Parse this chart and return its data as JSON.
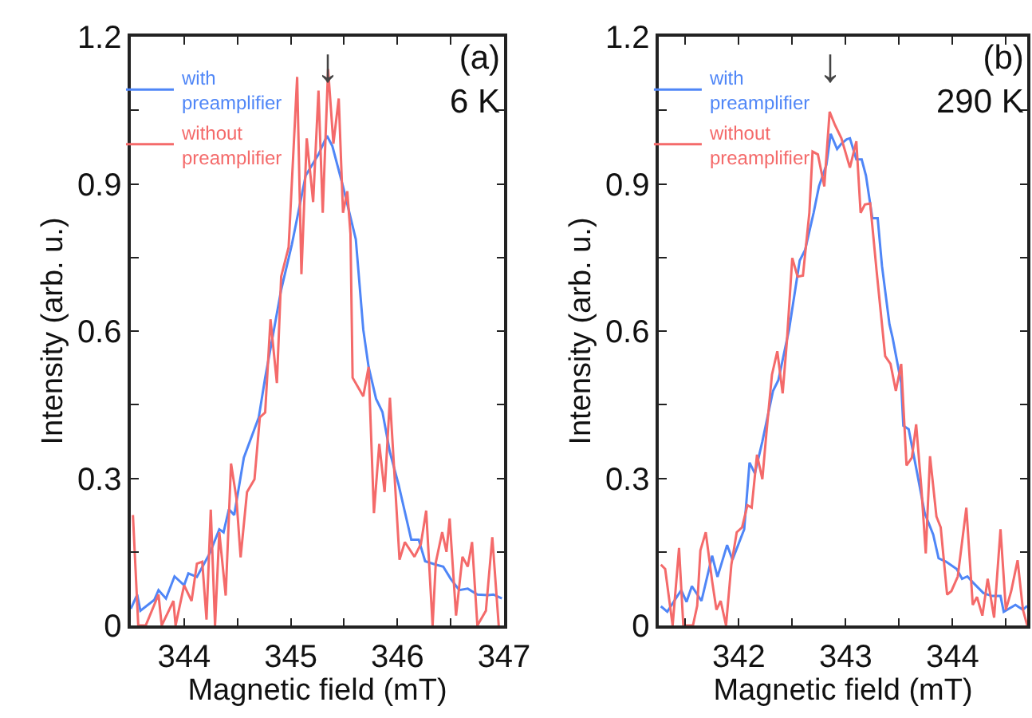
{
  "chart_data": [
    {
      "type": "line",
      "xlabel": "Magnetic field (mT)",
      "ylabel": "Intensity (arb. u.)",
      "annotations": [
        "(a)\n6 K",
        "↓"
      ],
      "legend": "top left",
      "marker": "none",
      "line_style": "solid",
      "xlim": [
        343.5,
        347
      ],
      "ylim": [
        0,
        1.2
      ],
      "xticks": [
        344,
        {
          "value": 344.5,
          "label": null
        },
        345,
        {
          "value": 345.5,
          "label": null
        },
        346,
        {
          "value": 346.5,
          "label": null
        },
        347
      ],
      "yticks": [
        0,
        {
          "value": 0.15,
          "label": null
        },
        0.3,
        {
          "value": 0.45,
          "label": null
        },
        0.6,
        {
          "value": 0.75,
          "label": null
        },
        0.9,
        {
          "value": 1.05,
          "label": null
        },
        1.2
      ],
      "series": [
        {
          "name": "with preamplifier",
          "color": "#4f86f7",
          "x": [
            343.5,
            343.56,
            343.59,
            343.72,
            343.76,
            343.83,
            343.91,
            344.0,
            344.04,
            344.12,
            344.24,
            344.33,
            344.37,
            344.42,
            344.47,
            344.56,
            344.7,
            344.76,
            344.84,
            344.91,
            345.01,
            345.14,
            345.26,
            345.34,
            345.39,
            345.49,
            345.61,
            345.68,
            345.73,
            345.8,
            345.86,
            345.93,
            346.01,
            346.13,
            346.2,
            346.26,
            346.36,
            346.43,
            346.5,
            346.58,
            346.66,
            346.75,
            346.85,
            346.9,
            346.98
          ],
          "values": [
            0.034,
            0.063,
            0.03,
            0.052,
            0.072,
            0.055,
            0.1,
            0.082,
            0.106,
            0.099,
            0.147,
            0.196,
            0.19,
            0.237,
            0.225,
            0.342,
            0.424,
            0.505,
            0.6,
            0.684,
            0.776,
            0.917,
            0.96,
            0.998,
            0.977,
            0.895,
            0.787,
            0.603,
            0.527,
            0.462,
            0.435,
            0.353,
            0.288,
            0.175,
            0.175,
            0.131,
            0.124,
            0.12,
            0.095,
            0.072,
            0.075,
            0.063,
            0.062,
            0.063,
            0.055
          ]
        },
        {
          "name": "without preamplifier",
          "color": "#f46a6a",
          "x": [
            343.52,
            343.57,
            343.64,
            343.76,
            343.79,
            343.9,
            343.92,
            344.0,
            344.07,
            344.12,
            344.17,
            344.21,
            344.25,
            344.29,
            344.33,
            344.39,
            344.44,
            344.49,
            344.53,
            344.59,
            344.66,
            344.71,
            344.76,
            344.81,
            344.87,
            344.91,
            344.98,
            345.06,
            345.1,
            345.15,
            345.21,
            345.26,
            345.3,
            345.35,
            345.4,
            345.45,
            345.49,
            345.53,
            345.56,
            345.58,
            345.68,
            345.73,
            345.78,
            345.83,
            345.88,
            345.93,
            346.02,
            346.07,
            346.16,
            346.22,
            346.27,
            346.33,
            346.36,
            346.42,
            346.46,
            346.49,
            346.55,
            346.61,
            346.66,
            346.7,
            346.75,
            346.83,
            346.89,
            346.95
          ],
          "values": [
            0.225,
            0.0,
            0.0,
            0.063,
            0.0,
            0.05,
            0.0,
            0.082,
            0.05,
            0.126,
            0.13,
            0.012,
            0.236,
            0.0,
            0.19,
            0.061,
            0.33,
            0.26,
            0.139,
            0.272,
            0.298,
            0.424,
            0.434,
            0.624,
            0.494,
            0.711,
            0.771,
            1.118,
            0.716,
            0.993,
            0.863,
            1.09,
            0.841,
            1.134,
            0.982,
            1.074,
            0.841,
            0.885,
            0.798,
            0.505,
            0.467,
            0.527,
            0.229,
            0.37,
            0.272,
            0.464,
            0.134,
            0.17,
            0.14,
            0.166,
            0.234,
            0.0,
            0.128,
            0.19,
            0.15,
            0.218,
            0.02,
            0.14,
            0.12,
            0.17,
            0.0,
            0.03,
            0.18,
            0.0
          ]
        }
      ]
    },
    {
      "type": "line",
      "xlabel": "Magnetic field (mT)",
      "ylabel": "Intensity (arb. u.)",
      "annotations": [
        "(b)\n290 K",
        "↓"
      ],
      "legend": "top left",
      "marker": "none",
      "line_style": "solid",
      "xlim": [
        341.25,
        344.7
      ],
      "ylim": [
        0,
        1.2
      ],
      "xticks": [
        {
          "value": 341.5,
          "label": null
        },
        342,
        {
          "value": 342.5,
          "label": null
        },
        343,
        {
          "value": 343.5,
          "label": null
        },
        344,
        {
          "value": 344.5,
          "label": null
        }
      ],
      "yticks": [
        0,
        {
          "value": 0.15,
          "label": null
        },
        0.3,
        {
          "value": 0.45,
          "label": null
        },
        0.6,
        {
          "value": 0.75,
          "label": null
        },
        0.9,
        {
          "value": 1.05,
          "label": null
        },
        1.2
      ],
      "series": [
        {
          "name": "with preamplifier",
          "color": "#4f86f7",
          "x": [
            341.27,
            341.33,
            341.46,
            341.51,
            341.56,
            341.65,
            341.75,
            341.8,
            341.89,
            341.94,
            342.05,
            342.1,
            342.15,
            342.22,
            342.32,
            342.37,
            342.47,
            342.57,
            342.62,
            342.7,
            342.75,
            342.82,
            342.86,
            342.92,
            342.96,
            343.01,
            343.04,
            343.1,
            343.15,
            343.19,
            343.25,
            343.3,
            343.34,
            343.41,
            343.44,
            343.52,
            343.54,
            343.59,
            343.67,
            343.74,
            343.82,
            343.87,
            343.94,
            344.04,
            344.09,
            344.14,
            344.19,
            344.29,
            344.37,
            344.45,
            344.48,
            344.59,
            344.66,
            344.7
          ],
          "values": [
            0.039,
            0.028,
            0.072,
            0.048,
            0.08,
            0.05,
            0.142,
            0.099,
            0.164,
            0.134,
            0.196,
            0.332,
            0.31,
            0.375,
            0.478,
            0.5,
            0.603,
            0.744,
            0.765,
            0.841,
            0.895,
            0.939,
            1.002,
            0.971,
            0.982,
            0.991,
            0.993,
            0.95,
            0.95,
            0.917,
            0.83,
            0.83,
            0.733,
            0.614,
            0.586,
            0.494,
            0.407,
            0.4,
            0.31,
            0.229,
            0.185,
            0.137,
            0.13,
            0.115,
            0.095,
            0.1,
            0.088,
            0.066,
            0.06,
            0.06,
            0.028,
            0.042,
            0.032,
            0.04
          ]
        },
        {
          "name": "without preamplifier",
          "color": "#f46a6a",
          "x": [
            341.27,
            341.31,
            341.38,
            341.44,
            341.48,
            341.57,
            341.61,
            341.64,
            341.69,
            341.75,
            341.79,
            341.83,
            341.88,
            341.93,
            341.98,
            342.03,
            342.08,
            342.12,
            342.17,
            342.22,
            342.26,
            342.31,
            342.36,
            342.41,
            342.45,
            342.5,
            342.55,
            342.6,
            342.66,
            342.69,
            342.74,
            342.8,
            342.85,
            342.9,
            342.96,
            343.04,
            343.1,
            343.14,
            343.18,
            343.23,
            343.29,
            343.37,
            343.42,
            343.47,
            343.52,
            343.57,
            343.62,
            343.66,
            343.71,
            343.75,
            343.79,
            343.85,
            343.89,
            343.95,
            343.99,
            344.05,
            344.13,
            344.19,
            344.23,
            344.28,
            344.33,
            344.39,
            344.45,
            344.5,
            344.55,
            344.61,
            344.66,
            344.7
          ],
          "values": [
            0.124,
            0.115,
            0.0,
            0.158,
            0.0,
            0.0,
            0.04,
            0.153,
            0.19,
            0.09,
            0.032,
            0.05,
            0.0,
            0.124,
            0.19,
            0.2,
            0.245,
            0.24,
            0.348,
            0.298,
            0.397,
            0.511,
            0.559,
            0.473,
            0.58,
            0.749,
            0.711,
            0.713,
            0.841,
            0.966,
            0.96,
            0.895,
            1.047,
            1.02,
            0.993,
            0.933,
            0.987,
            0.841,
            0.858,
            0.86,
            0.722,
            0.549,
            0.533,
            0.478,
            0.533,
            0.326,
            0.342,
            0.41,
            0.277,
            0.147,
            0.345,
            0.222,
            0.2,
            0.063,
            0.07,
            0.1,
            0.24,
            0.042,
            0.058,
            0.02,
            0.095,
            0.016,
            0.196,
            0.032,
            0.07,
            0.133,
            0.032,
            0.0
          ]
        }
      ]
    }
  ]
}
